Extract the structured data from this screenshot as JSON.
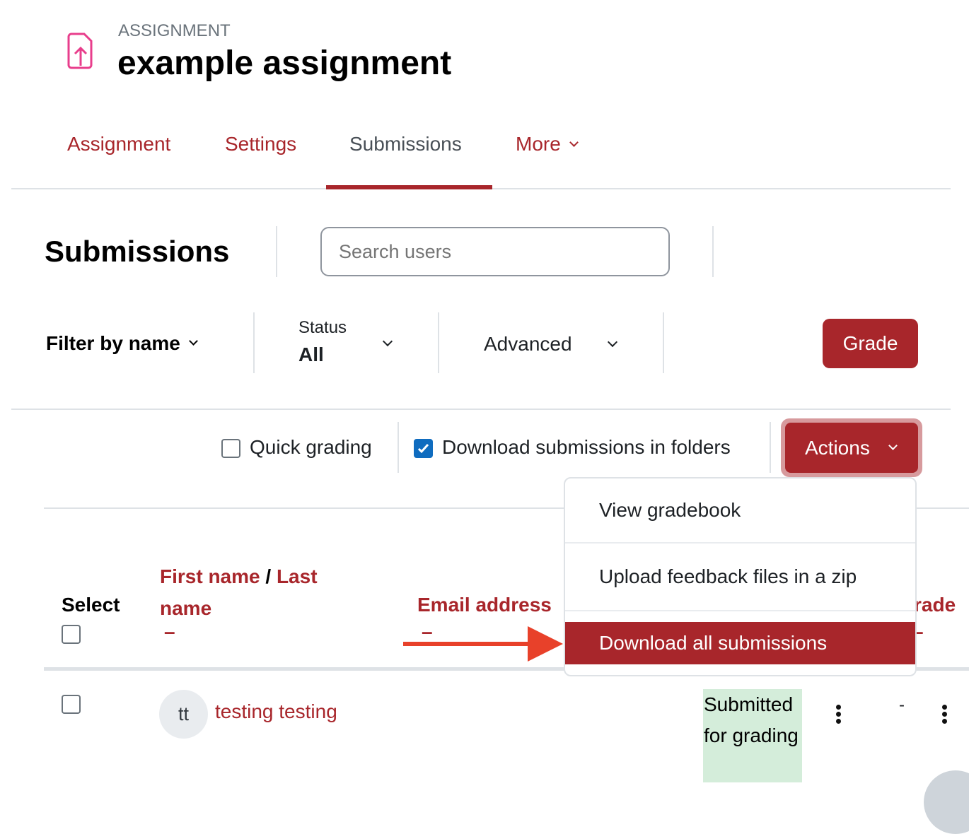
{
  "header": {
    "kicker": "ASSIGNMENT",
    "title": "example assignment",
    "icon": "file-upload-icon",
    "icon_color": "#e83e8c"
  },
  "tabs": [
    {
      "label": "Assignment"
    },
    {
      "label": "Settings"
    },
    {
      "label": "Submissions",
      "active": true
    },
    {
      "label": "More"
    }
  ],
  "page": {
    "heading": "Submissions",
    "search_placeholder": "Search users"
  },
  "filters": {
    "filter_by_name": "Filter by name",
    "status_label": "Status",
    "status_value": "All",
    "advanced": "Advanced",
    "grade_button": "Grade"
  },
  "options": {
    "quick_grading": "Quick grading",
    "quick_grading_checked": false,
    "download_folders": "Download submissions in folders",
    "download_folders_checked": true,
    "actions": "Actions"
  },
  "actions_menu": [
    {
      "label": "View gradebook"
    },
    {
      "label": "Upload feedback files in a zip"
    },
    {
      "label": "Download all submissions",
      "highlighted": true
    }
  ],
  "table": {
    "select": "Select",
    "first_name": "First name",
    "slash": "/",
    "last_name": "Last name",
    "email": "Email address",
    "grade": "rade",
    "sort_dash": "–"
  },
  "rows": [
    {
      "initials": "tt",
      "name": "testing testing",
      "status": "Submitted for grading",
      "grade": "-"
    }
  ],
  "colors": {
    "accent": "#a8262b",
    "status_bg": "#d4edda",
    "arrow": "#e8412a"
  }
}
